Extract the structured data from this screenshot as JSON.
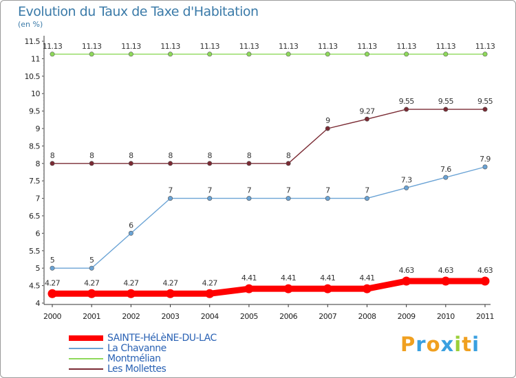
{
  "chart_data": {
    "type": "line",
    "title": "Evolution du Taux de Taxe d'Habitation",
    "subtitle": "(en %)",
    "xlabel": "",
    "ylabel": "",
    "x": [
      "2000",
      "2001",
      "2002",
      "2003",
      "2004",
      "2005",
      "2006",
      "2007",
      "2008",
      "2009",
      "2010",
      "2011"
    ],
    "ylim": [
      4,
      11.5
    ],
    "yticks": [
      "4",
      "4.5",
      "5",
      "5.5",
      "6",
      "6.5",
      "7",
      "7.5",
      "8",
      "8.5",
      "9",
      "9.5",
      "10",
      "10.5",
      "11",
      "11.5"
    ],
    "series": [
      {
        "name": "SAINTE-HéLèNE-DU-LAC",
        "color": "#ff0000",
        "values": [
          4.27,
          4.27,
          4.27,
          4.27,
          4.27,
          4.41,
          4.41,
          4.41,
          4.41,
          4.63,
          4.63,
          4.63
        ],
        "labels": [
          "4.27",
          "4.27",
          "4.27",
          "4.27",
          "4.27",
          "4.41",
          "4.41",
          "4.41",
          "4.41",
          "4.63",
          "4.63",
          "4.63"
        ]
      },
      {
        "name": "La Chavanne",
        "color": "#6aa3d5",
        "values": [
          5,
          5,
          6,
          7,
          7,
          7,
          7,
          7,
          7,
          7.3,
          7.6,
          7.9
        ],
        "labels": [
          "5",
          "5",
          "6",
          "7",
          "7",
          "7",
          "7",
          "7",
          "7",
          "7.3",
          "7.6",
          "7.9"
        ]
      },
      {
        "name": "Montmélian",
        "color": "#8ed95a",
        "values": [
          11.13,
          11.13,
          11.13,
          11.13,
          11.13,
          11.13,
          11.13,
          11.13,
          11.13,
          11.13,
          11.13,
          11.13
        ],
        "labels": [
          "11.13",
          "11.13",
          "11.13",
          "11.13",
          "11.13",
          "11.13",
          "11.13",
          "11.13",
          "11.13",
          "11.13",
          "11.13",
          "11.13"
        ]
      },
      {
        "name": "Les Mollettes",
        "color": "#7a2a33",
        "values": [
          8,
          8,
          8,
          8,
          8,
          8,
          8,
          9,
          9.27,
          9.55,
          9.55,
          9.55
        ],
        "labels": [
          "8",
          "8",
          "8",
          "8",
          "8",
          "8",
          "8",
          "9",
          "9.27",
          "9.55",
          "9.55",
          "9.55"
        ]
      }
    ],
    "grid": false,
    "legend": "bottom-left"
  },
  "branding": {
    "letters": [
      "P",
      "r",
      "o",
      "x",
      "i",
      "t",
      "i"
    ],
    "colors": [
      "#f0a020",
      "#3aa0e0",
      "#f0a020",
      "#3aa0e0",
      "#9bcf3a",
      "#f0a020",
      "#3aa0e0"
    ]
  }
}
